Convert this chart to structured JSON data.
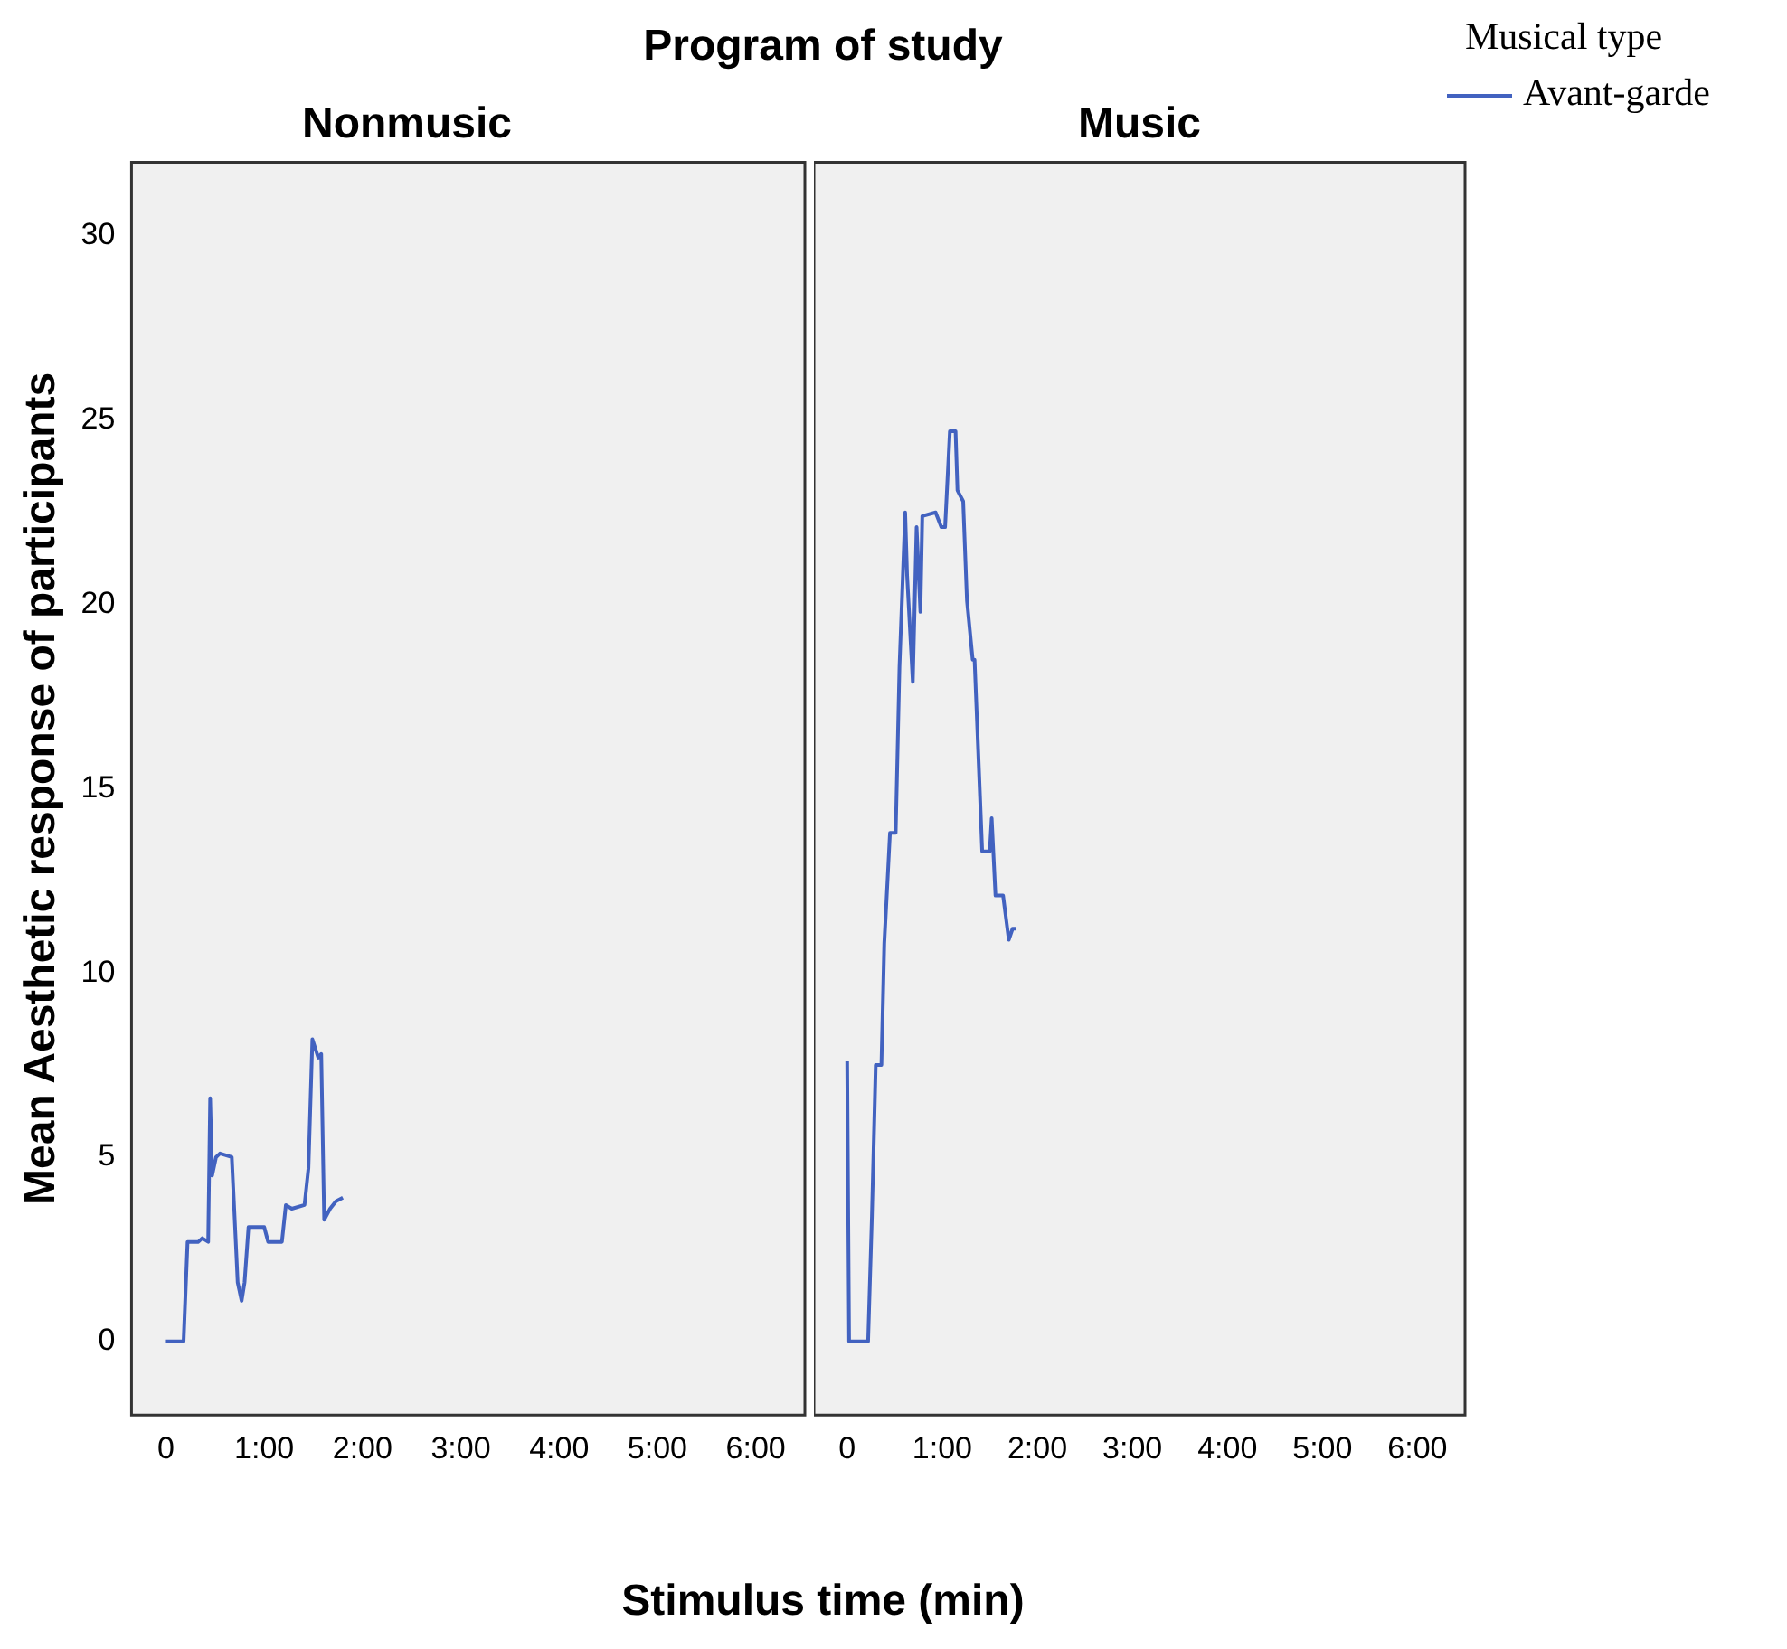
{
  "chart_data": [
    {
      "type": "line",
      "title": "Nonmusic",
      "annotations": [
        "Program of study"
      ],
      "xlabel": "Stimulus time (min)",
      "ylabel": "Mean Aesthetic response of participants",
      "xlim": [
        -0.35,
        6.5
      ],
      "xticks": [
        0,
        {
          "value": 1,
          "label": "1:00"
        },
        {
          "value": 2,
          "label": "2:00"
        },
        {
          "value": 3,
          "label": "3:00"
        },
        {
          "value": 4,
          "label": "4:00"
        },
        {
          "value": 5,
          "label": "5:00"
        },
        {
          "value": 6,
          "label": "6:00"
        }
      ],
      "ylim": [
        -2,
        32
      ],
      "yticks": [
        0,
        5,
        10,
        15,
        20,
        25,
        30
      ],
      "grid": false,
      "marker": "none",
      "line_style": "solid",
      "series": [
        {
          "color": "#4262c0",
          "x": [
            0,
            0.18,
            0.22,
            0.33,
            0.37,
            0.43,
            0.45,
            0.47,
            0.51,
            0.55,
            0.67,
            0.73,
            0.77,
            0.8,
            0.84,
            1.0,
            1.04,
            1.18,
            1.22,
            1.28,
            1.41,
            1.45,
            1.49,
            1.55,
            1.58,
            1.61,
            1.67,
            1.73,
            1.8
          ],
          "values": [
            0,
            0,
            2.7,
            2.7,
            2.8,
            2.7,
            6.6,
            4.5,
            5.0,
            5.1,
            5.0,
            1.6,
            1.1,
            1.6,
            3.1,
            3.1,
            2.7,
            2.7,
            3.7,
            3.6,
            3.7,
            4.7,
            8.2,
            7.7,
            7.8,
            3.3,
            3.6,
            3.8,
            3.9
          ]
        }
      ]
    },
    {
      "type": "line",
      "title": "Music",
      "legend": "top right",
      "legend_title": "Musical type",
      "tick_labels": "x",
      "xlim": [
        -0.35,
        6.5
      ],
      "xticks": [
        0,
        {
          "value": 1,
          "label": "1:00"
        },
        {
          "value": 2,
          "label": "2:00"
        },
        {
          "value": 3,
          "label": "3:00"
        },
        {
          "value": 4,
          "label": "4:00"
        },
        {
          "value": 5,
          "label": "5:00"
        },
        {
          "value": 6,
          "label": "6:00"
        }
      ],
      "ylim": [
        -2,
        32
      ],
      "yticks": [
        0,
        5,
        10,
        15,
        20,
        25,
        30
      ],
      "grid": false,
      "marker": "none",
      "line_style": "solid",
      "series": [
        {
          "name": "Avant-garde",
          "color": "#4262c0",
          "x": [
            0,
            0.02,
            0.22,
            0.26,
            0.3,
            0.36,
            0.39,
            0.45,
            0.51,
            0.55,
            0.61,
            0.63,
            0.69,
            0.73,
            0.77,
            0.79,
            0.93,
            0.99,
            1.03,
            1.08,
            1.14,
            1.16,
            1.22,
            1.26,
            1.32,
            1.34,
            1.42,
            1.5,
            1.52,
            1.56,
            1.64,
            1.7,
            1.74,
            1.78
          ],
          "values": [
            7.6,
            0,
            0,
            3.4,
            7.5,
            7.5,
            10.8,
            13.8,
            13.8,
            18.3,
            22.5,
            20.8,
            17.9,
            22.1,
            19.8,
            22.4,
            22.5,
            22.1,
            22.1,
            24.7,
            24.7,
            23.1,
            22.8,
            20.1,
            18.5,
            18.5,
            13.3,
            13.3,
            14.2,
            12.1,
            12.1,
            10.9,
            11.2,
            11.2
          ]
        }
      ]
    }
  ]
}
